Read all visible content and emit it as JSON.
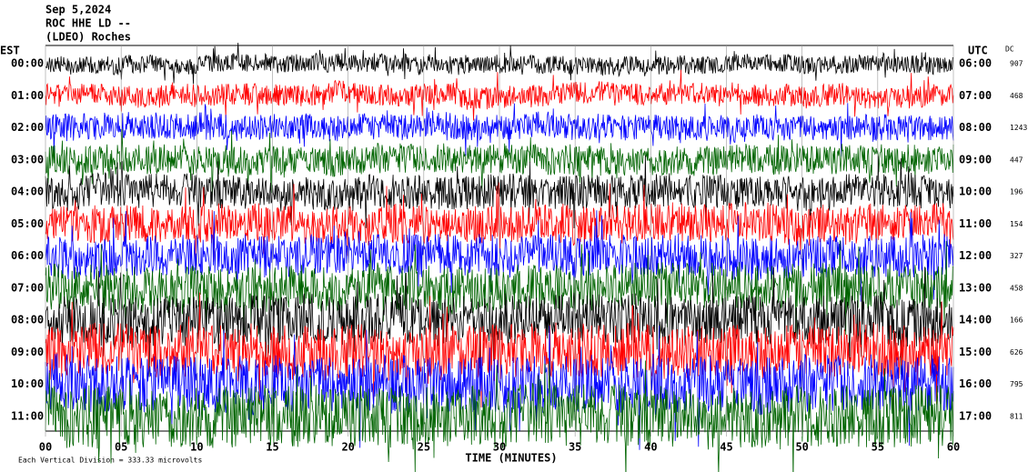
{
  "chart_data": {
    "type": "helicorder",
    "header": [
      "Sep 5,2024",
      "ROC HHE LD --",
      "(LDEO) Roches"
    ],
    "left_zone": "EST",
    "right_zone": "UTC",
    "dc_label": "DC",
    "xlabel": "TIME (MINUTES)",
    "footer": "Each Vertical Division = 333.33 microvolts",
    "xlim": [
      0,
      60
    ],
    "xticks": [
      {
        "value": 0,
        "label": "00"
      },
      {
        "value": 5,
        "label": "05"
      },
      10,
      15,
      20,
      25,
      30,
      35,
      40,
      45,
      50,
      55,
      60
    ],
    "rows": [
      {
        "est": "00:00",
        "utc": "06:00",
        "dc": 907,
        "color": "#000000"
      },
      {
        "est": "01:00",
        "utc": "07:00",
        "dc": 468,
        "color": "#ff0000"
      },
      {
        "est": "02:00",
        "utc": "08:00",
        "dc": 1243,
        "color": "#0000ff"
      },
      {
        "est": "03:00",
        "utc": "09:00",
        "dc": 447,
        "color": "#006400"
      },
      {
        "est": "04:00",
        "utc": "10:00",
        "dc": 196,
        "color": "#000000"
      },
      {
        "est": "05:00",
        "utc": "11:00",
        "dc": 154,
        "color": "#ff0000"
      },
      {
        "est": "06:00",
        "utc": "12:00",
        "dc": 327,
        "color": "#0000ff"
      },
      {
        "est": "07:00",
        "utc": "13:00",
        "dc": 458,
        "color": "#006400"
      },
      {
        "est": "08:00",
        "utc": "14:00",
        "dc": 166,
        "color": "#000000"
      },
      {
        "est": "09:00",
        "utc": "15:00",
        "dc": 626,
        "color": "#ff0000"
      },
      {
        "est": "10:00",
        "utc": "16:00",
        "dc": 795,
        "color": "#0000ff"
      },
      {
        "est": "11:00",
        "utc": "17:00",
        "dc": 811,
        "color": "#006400"
      }
    ]
  }
}
